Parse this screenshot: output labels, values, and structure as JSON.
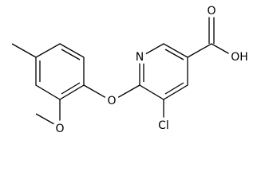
{
  "atoms": [
    {
      "label": "N"
    },
    {
      "label": "O"
    },
    {
      "label": "Cl"
    },
    {
      "label": "O"
    },
    {
      "label": "OH"
    },
    {
      "label": "O"
    }
  ]
}
